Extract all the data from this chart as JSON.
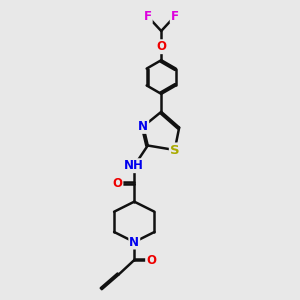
{
  "background_color": "#e8e8e8",
  "atom_colors": {
    "C": "#000000",
    "N": "#0000ee",
    "O": "#ee0000",
    "S": "#aaaa00",
    "F": "#dd00dd",
    "H": "#0000ee"
  },
  "bond_color": "#111111",
  "bond_width": 1.8,
  "font_size": 8.5
}
